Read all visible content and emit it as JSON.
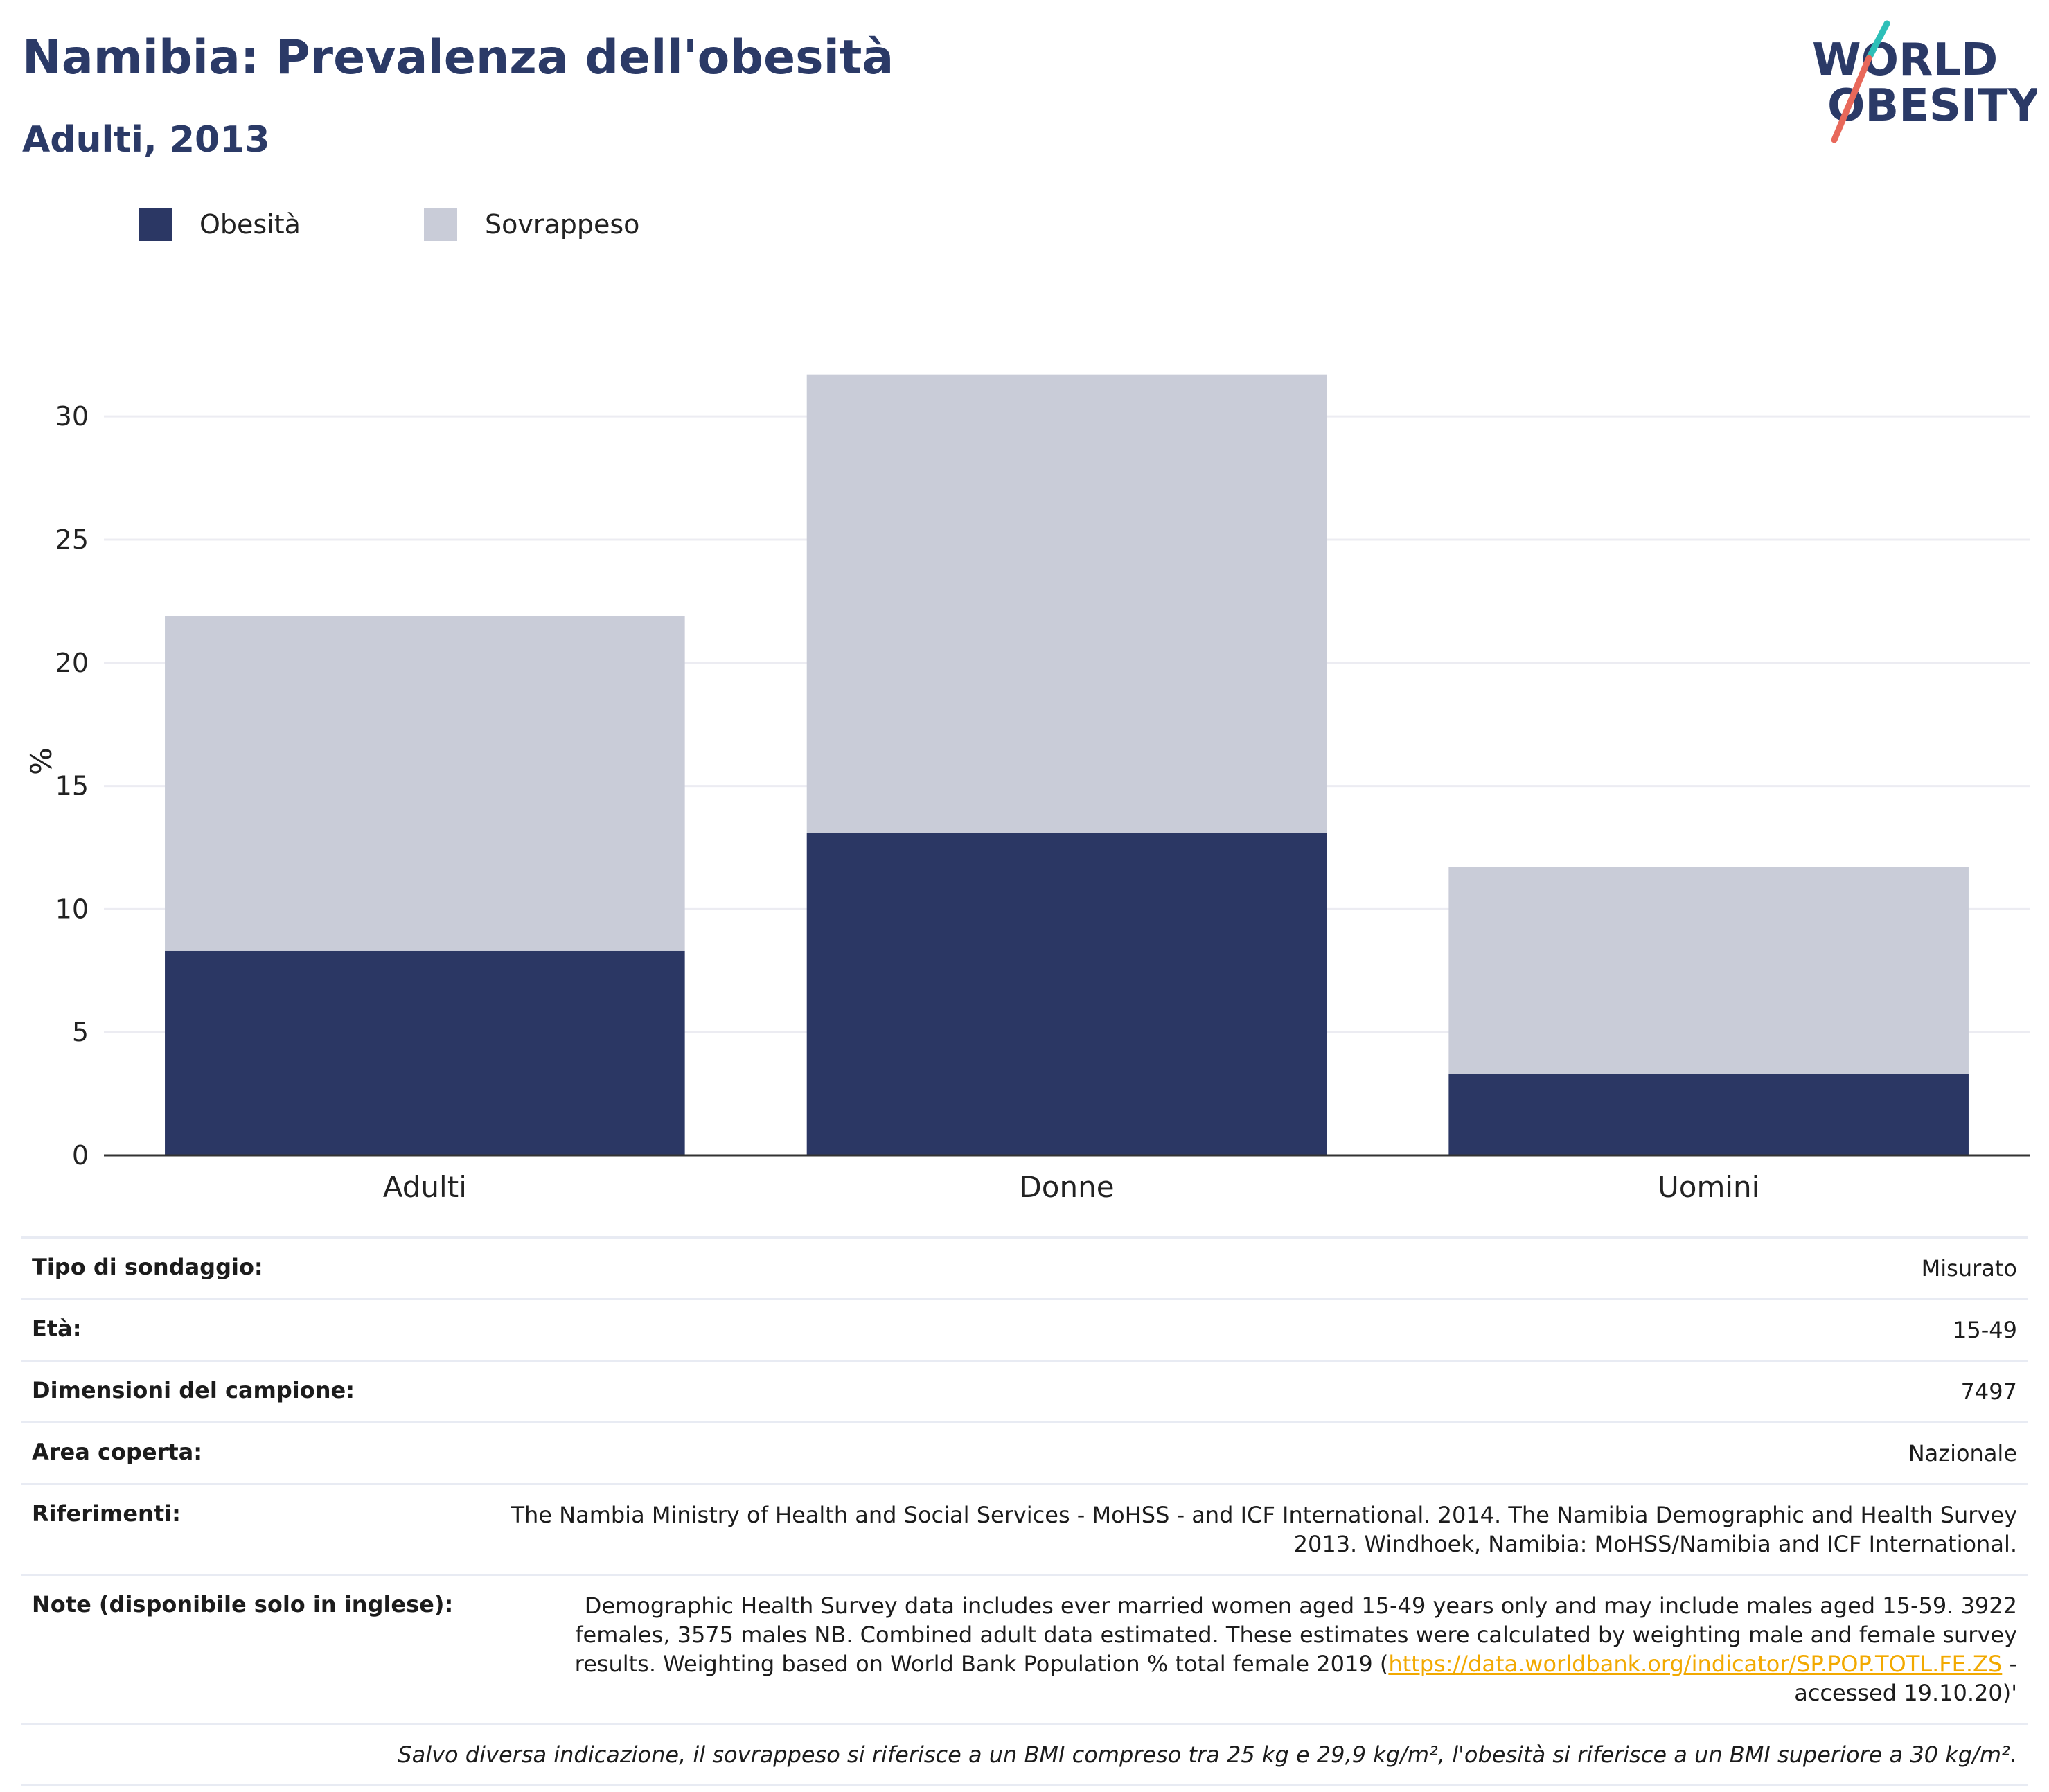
{
  "header": {
    "title": "Namibia: Prevalenza dell'obesità",
    "subtitle": "Adulti, 2013",
    "logo_line1": "WORLD",
    "logo_line2": "OBESITY"
  },
  "colors": {
    "obesity": "#2b3764",
    "overweight": "#c9ccd8",
    "title": "#2b3a67",
    "link": "#f2a900"
  },
  "legend": [
    {
      "label": "Obesità",
      "color": "#2b3764"
    },
    {
      "label": "Sovrappeso",
      "color": "#c9ccd8"
    }
  ],
  "chart_data": {
    "type": "bar",
    "stacked": true,
    "categories": [
      "Adulti",
      "Donne",
      "Uomini"
    ],
    "series": [
      {
        "name": "Obesità",
        "values": [
          8.3,
          13.1,
          3.3
        ]
      },
      {
        "name": "Sovrappeso",
        "values": [
          13.6,
          18.6,
          8.4
        ]
      }
    ],
    "ylabel": "%",
    "ylim": [
      0,
      32
    ],
    "yticks": [
      0,
      5,
      10,
      15,
      20,
      25,
      30
    ],
    "grid": true,
    "legend_position": "top-left"
  },
  "info": {
    "rows": [
      {
        "key": "Tipo di sondaggio:",
        "value": "Misurato"
      },
      {
        "key": "Età:",
        "value": "15-49"
      },
      {
        "key": "Dimensioni del campione:",
        "value": "7497"
      },
      {
        "key": "Area coperta:",
        "value": "Nazionale"
      },
      {
        "key": "Riferimenti:",
        "value": "The Nambia Ministry of Health and Social Services - MoHSS - and ICF International. 2014. The Namibia Demographic and Health Survey 2013. Windhoek, Namibia: MoHSS/Namibia and ICF International."
      }
    ],
    "notes": {
      "key": "Note (disponibile solo in inglese):",
      "before": "Demographic Health Survey data includes ever married women aged 15-49 years only and may include males aged 15-59. 3922 females, 3575 males NB. Combined adult data estimated. These estimates were calculated by weighting male and female survey results. Weighting based on World Bank Population % total female 2019 (",
      "link": "https://data.worldbank.org/indicator/SP.POP.TOTL.FE.ZS",
      "after": " - accessed 19.10.20)'"
    },
    "footnote": "Salvo diversa indicazione, il sovrappeso si riferisce a un BMI compreso tra 25 kg e 29,9 kg/m², l'obesità si riferisce a un BMI superiore a 30 kg/m²."
  }
}
